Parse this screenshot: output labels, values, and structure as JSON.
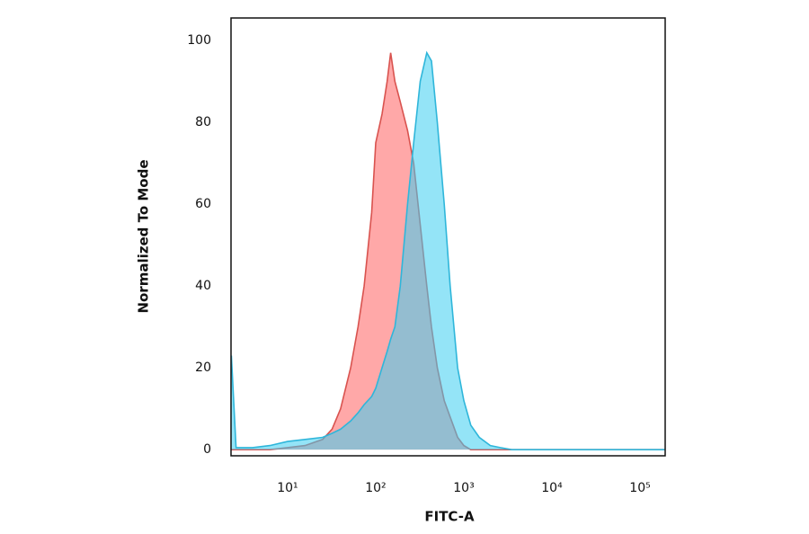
{
  "chart_data": {
    "type": "area",
    "x_label": "FITC-A",
    "y_label": "Normalized To Mode",
    "xscale": "log",
    "xlim": [
      2.28,
      193000
    ],
    "ylim": [
      -1.5,
      105.5
    ],
    "xticks": [
      {
        "value": 10,
        "label": "10¹"
      },
      {
        "value": 100,
        "label": "10²"
      },
      {
        "value": 1000,
        "label": "10³"
      },
      {
        "value": 10000,
        "label": "10⁴"
      },
      {
        "value": 100000,
        "label": "10⁵"
      }
    ],
    "yticks": [
      0,
      20,
      40,
      60,
      80,
      100
    ],
    "grid": false,
    "x": [
      2.3,
      2.6,
      4,
      6.3,
      10,
      15.8,
      25,
      32,
      40,
      52,
      63,
      74,
      90,
      100,
      118,
      135,
      148,
      165,
      190,
      230,
      270,
      320,
      380,
      430,
      500,
      600,
      700,
      850,
      1000,
      1200,
      1500,
      2000,
      2600,
      3500,
      5000,
      10000,
      100000,
      190000
    ],
    "series": [
      {
        "color": "#d9534f",
        "fill": "rgba(255,110,110,0.6)",
        "values": [
          0,
          0,
          0,
          0,
          0.5,
          1,
          2.5,
          5,
          10,
          20,
          30,
          40,
          58,
          75,
          82,
          90,
          97,
          90,
          85,
          78,
          70,
          55,
          40,
          30,
          20,
          12,
          8,
          3,
          1,
          0,
          0,
          0,
          0,
          0,
          0,
          0,
          0,
          0
        ]
      },
      {
        "color": "#2fb6da",
        "fill": "rgba(60,205,240,0.55)",
        "values": [
          23,
          0.5,
          0.5,
          1,
          2,
          2.5,
          3,
          4,
          5,
          7,
          9,
          11,
          13,
          15,
          20,
          24,
          27,
          30,
          40,
          60,
          75,
          90,
          97,
          95,
          80,
          60,
          40,
          20,
          12,
          6,
          3,
          1,
          0.5,
          0,
          0,
          0,
          0,
          0
        ]
      }
    ]
  }
}
